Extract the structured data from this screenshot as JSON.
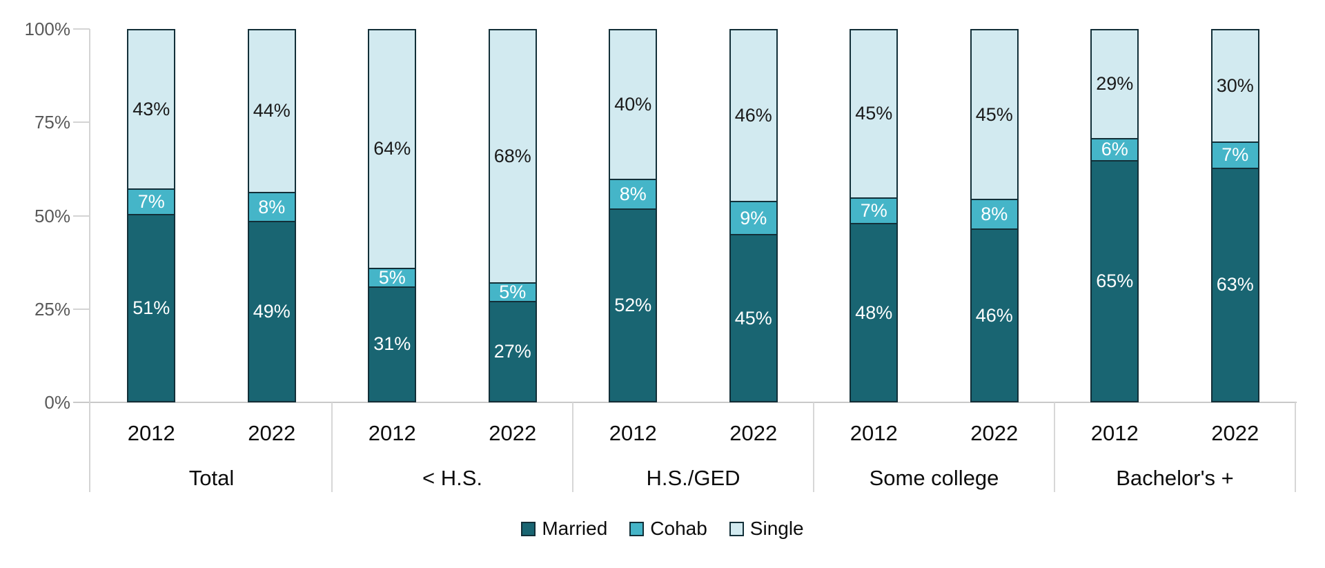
{
  "chart_data": {
    "type": "bar",
    "stacked": true,
    "title": "",
    "xlabel": "",
    "ylabel": "",
    "ylim": [
      0,
      100
    ],
    "grid": false,
    "legend_position": "bottom",
    "group_labels": [
      "Total",
      "< H.S.",
      "H.S./GED",
      "Some college",
      "Bachelor's +"
    ],
    "bar_year_labels": [
      "2012",
      "2022",
      "2012",
      "2022",
      "2012",
      "2022",
      "2012",
      "2022",
      "2012",
      "2022"
    ],
    "y_ticks": [
      {
        "value": 0,
        "label": "0%"
      },
      {
        "value": 25,
        "label": "25%"
      },
      {
        "value": 50,
        "label": "50%"
      },
      {
        "value": 75,
        "label": "75%"
      },
      {
        "value": 100,
        "label": "100%"
      }
    ],
    "series": [
      {
        "name": "Married",
        "color": "#196572",
        "label_color": "#ffffff",
        "values": [
          51,
          49,
          31,
          27,
          52,
          45,
          48,
          46,
          65,
          63
        ],
        "labels": [
          "51%",
          "49%",
          "31%",
          "27%",
          "52%",
          "45%",
          "48%",
          "46%",
          "65%",
          "63%"
        ]
      },
      {
        "name": "Cohab",
        "color": "#45b5c8",
        "label_color": "#ffffff",
        "values": [
          7,
          8,
          5,
          5,
          8,
          9,
          7,
          8,
          6,
          7
        ],
        "labels": [
          "7%",
          "8%",
          "5%",
          "5%",
          "8%",
          "9%",
          "7%",
          "8%",
          "6%",
          "7%"
        ]
      },
      {
        "name": "Single",
        "color": "#d2eaf0",
        "label_color": "#1a1a1a",
        "values": [
          43,
          44,
          64,
          68,
          40,
          46,
          45,
          45,
          29,
          30
        ],
        "labels": [
          "43%",
          "44%",
          "64%",
          "68%",
          "40%",
          "46%",
          "45%",
          "45%",
          "29%",
          "30%"
        ]
      }
    ],
    "colors": {
      "bar_border": "#122f38",
      "axis_line": "#c9c9c9",
      "divider_line": "#d7d7d7",
      "tick_label": "#595959",
      "category_label": "#0d0d0d"
    }
  }
}
